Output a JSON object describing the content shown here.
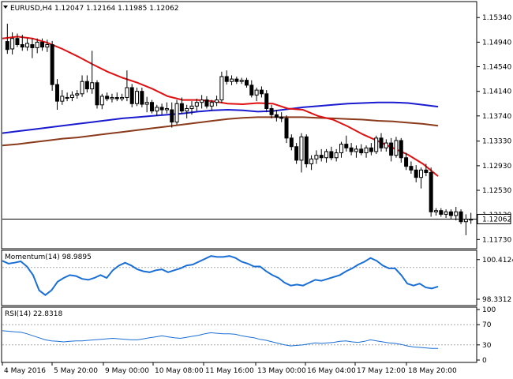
{
  "chart_data": [
    {
      "type": "candlestick",
      "title": "EURUSD,H4  1.12047 1.12164 1.11985 1.12062",
      "symbol": "EURUSD",
      "timeframe": "H4",
      "ohlc_label": "1.12047 1.12164 1.11985 1.12062",
      "ylim": [
        1.1158,
        1.156
      ],
      "y_ticks": [
        "1.15340",
        "1.14940",
        "1.14540",
        "1.14140",
        "1.13740",
        "1.13330",
        "1.12930",
        "1.12530",
        "1.12130",
        "1.11730"
      ],
      "current_price": 1.12062,
      "current_price_label": "1.12062",
      "colors": {
        "candle": "#000000",
        "bull_body": "#ffffff",
        "bear_body": "#000000",
        "ma_short": "#e01010",
        "ma_mid": "#1a1ad0",
        "ma_long": "#8b3a1c"
      },
      "candles": [
        {
          "o": 1.1495,
          "h": 1.1524,
          "l": 1.1475,
          "c": 1.1482
        },
        {
          "o": 1.1483,
          "h": 1.151,
          "l": 1.1474,
          "c": 1.15
        },
        {
          "o": 1.15,
          "h": 1.1508,
          "l": 1.1486,
          "c": 1.149
        },
        {
          "o": 1.149,
          "h": 1.1506,
          "l": 1.148,
          "c": 1.1486
        },
        {
          "o": 1.1486,
          "h": 1.15,
          "l": 1.148,
          "c": 1.1492
        },
        {
          "o": 1.149,
          "h": 1.15,
          "l": 1.1468,
          "c": 1.1485
        },
        {
          "o": 1.1485,
          "h": 1.15,
          "l": 1.1476,
          "c": 1.1494
        },
        {
          "o": 1.1494,
          "h": 1.15,
          "l": 1.148,
          "c": 1.1486
        },
        {
          "o": 1.1486,
          "h": 1.1498,
          "l": 1.1478,
          "c": 1.149
        },
        {
          "o": 1.149,
          "h": 1.1496,
          "l": 1.1415,
          "c": 1.1425
        },
        {
          "o": 1.1425,
          "h": 1.1434,
          "l": 1.1384,
          "c": 1.1398
        },
        {
          "o": 1.1398,
          "h": 1.1416,
          "l": 1.1392,
          "c": 1.1406
        },
        {
          "o": 1.1404,
          "h": 1.1412,
          "l": 1.1398,
          "c": 1.1404
        },
        {
          "o": 1.1404,
          "h": 1.1414,
          "l": 1.1398,
          "c": 1.1408
        },
        {
          "o": 1.1408,
          "h": 1.1416,
          "l": 1.1402,
          "c": 1.141
        },
        {
          "o": 1.141,
          "h": 1.144,
          "l": 1.1405,
          "c": 1.143
        },
        {
          "o": 1.143,
          "h": 1.144,
          "l": 1.1412,
          "c": 1.1418
        },
        {
          "o": 1.1418,
          "h": 1.148,
          "l": 1.141,
          "c": 1.1428
        },
        {
          "o": 1.1428,
          "h": 1.1432,
          "l": 1.1386,
          "c": 1.1392
        },
        {
          "o": 1.1392,
          "h": 1.141,
          "l": 1.1385,
          "c": 1.1406
        },
        {
          "o": 1.1406,
          "h": 1.1412,
          "l": 1.1398,
          "c": 1.1402
        },
        {
          "o": 1.1402,
          "h": 1.141,
          "l": 1.1396,
          "c": 1.1404
        },
        {
          "o": 1.1404,
          "h": 1.1412,
          "l": 1.1398,
          "c": 1.1402
        },
        {
          "o": 1.1402,
          "h": 1.141,
          "l": 1.1398,
          "c": 1.1404
        },
        {
          "o": 1.1404,
          "h": 1.1448,
          "l": 1.1398,
          "c": 1.142
        },
        {
          "o": 1.142,
          "h": 1.1426,
          "l": 1.1388,
          "c": 1.1394
        },
        {
          "o": 1.1394,
          "h": 1.142,
          "l": 1.139,
          "c": 1.1414
        },
        {
          "o": 1.1414,
          "h": 1.142,
          "l": 1.1388,
          "c": 1.1393
        },
        {
          "o": 1.1393,
          "h": 1.1405,
          "l": 1.138,
          "c": 1.1396
        },
        {
          "o": 1.1396,
          "h": 1.14,
          "l": 1.1378,
          "c": 1.1382
        },
        {
          "o": 1.1382,
          "h": 1.1392,
          "l": 1.1374,
          "c": 1.1388
        },
        {
          "o": 1.1388,
          "h": 1.1394,
          "l": 1.1376,
          "c": 1.1384
        },
        {
          "o": 1.1384,
          "h": 1.1396,
          "l": 1.1378,
          "c": 1.1386
        },
        {
          "o": 1.1384,
          "h": 1.1396,
          "l": 1.1355,
          "c": 1.1364
        },
        {
          "o": 1.1364,
          "h": 1.14,
          "l": 1.136,
          "c": 1.1394
        },
        {
          "o": 1.1394,
          "h": 1.1404,
          "l": 1.1378,
          "c": 1.1382
        },
        {
          "o": 1.1382,
          "h": 1.1392,
          "l": 1.137,
          "c": 1.1386
        },
        {
          "o": 1.1386,
          "h": 1.1398,
          "l": 1.1376,
          "c": 1.139
        },
        {
          "o": 1.139,
          "h": 1.1402,
          "l": 1.1382,
          "c": 1.1396
        },
        {
          "o": 1.1396,
          "h": 1.1408,
          "l": 1.1386,
          "c": 1.14
        },
        {
          "o": 1.14,
          "h": 1.1406,
          "l": 1.1386,
          "c": 1.139
        },
        {
          "o": 1.139,
          "h": 1.14,
          "l": 1.1383,
          "c": 1.1396
        },
        {
          "o": 1.1396,
          "h": 1.1407,
          "l": 1.139,
          "c": 1.14
        },
        {
          "o": 1.14,
          "h": 1.1446,
          "l": 1.1395,
          "c": 1.1438
        },
        {
          "o": 1.1438,
          "h": 1.1448,
          "l": 1.1425,
          "c": 1.143
        },
        {
          "o": 1.143,
          "h": 1.144,
          "l": 1.1424,
          "c": 1.1434
        },
        {
          "o": 1.1434,
          "h": 1.1438,
          "l": 1.1426,
          "c": 1.143
        },
        {
          "o": 1.143,
          "h": 1.1436,
          "l": 1.1426,
          "c": 1.1432
        },
        {
          "o": 1.1432,
          "h": 1.1436,
          "l": 1.142,
          "c": 1.1424
        },
        {
          "o": 1.1424,
          "h": 1.1432,
          "l": 1.1404,
          "c": 1.1408
        },
        {
          "o": 1.1408,
          "h": 1.142,
          "l": 1.1398,
          "c": 1.1416
        },
        {
          "o": 1.1416,
          "h": 1.1422,
          "l": 1.1404,
          "c": 1.141
        },
        {
          "o": 1.141,
          "h": 1.1416,
          "l": 1.138,
          "c": 1.1386
        },
        {
          "o": 1.1386,
          "h": 1.1392,
          "l": 1.137,
          "c": 1.1376
        },
        {
          "o": 1.1376,
          "h": 1.1384,
          "l": 1.1365,
          "c": 1.1372
        },
        {
          "o": 1.1372,
          "h": 1.138,
          "l": 1.1364,
          "c": 1.137
        },
        {
          "o": 1.137,
          "h": 1.1375,
          "l": 1.133,
          "c": 1.1338
        },
        {
          "o": 1.1338,
          "h": 1.1344,
          "l": 1.1318,
          "c": 1.1324
        },
        {
          "o": 1.1324,
          "h": 1.133,
          "l": 1.1296,
          "c": 1.1302
        },
        {
          "o": 1.1302,
          "h": 1.1346,
          "l": 1.1282,
          "c": 1.134
        },
        {
          "o": 1.134,
          "h": 1.1344,
          "l": 1.129,
          "c": 1.1296
        },
        {
          "o": 1.1296,
          "h": 1.131,
          "l": 1.1286,
          "c": 1.1304
        },
        {
          "o": 1.1304,
          "h": 1.1318,
          "l": 1.1296,
          "c": 1.131
        },
        {
          "o": 1.131,
          "h": 1.132,
          "l": 1.13,
          "c": 1.1306
        },
        {
          "o": 1.1306,
          "h": 1.132,
          "l": 1.1298,
          "c": 1.1316
        },
        {
          "o": 1.1316,
          "h": 1.1324,
          "l": 1.1302,
          "c": 1.1306
        },
        {
          "o": 1.1306,
          "h": 1.132,
          "l": 1.13,
          "c": 1.1314
        },
        {
          "o": 1.1314,
          "h": 1.1332,
          "l": 1.1306,
          "c": 1.1328
        },
        {
          "o": 1.1328,
          "h": 1.1342,
          "l": 1.1316,
          "c": 1.1322
        },
        {
          "o": 1.1322,
          "h": 1.133,
          "l": 1.131,
          "c": 1.1316
        },
        {
          "o": 1.1316,
          "h": 1.1326,
          "l": 1.1306,
          "c": 1.132
        },
        {
          "o": 1.132,
          "h": 1.1328,
          "l": 1.131,
          "c": 1.1314
        },
        {
          "o": 1.1314,
          "h": 1.1326,
          "l": 1.1306,
          "c": 1.1322
        },
        {
          "o": 1.1322,
          "h": 1.133,
          "l": 1.131,
          "c": 1.1316
        },
        {
          "o": 1.1316,
          "h": 1.1342,
          "l": 1.1312,
          "c": 1.1338
        },
        {
          "o": 1.1338,
          "h": 1.1346,
          "l": 1.1316,
          "c": 1.1322
        },
        {
          "o": 1.1322,
          "h": 1.1336,
          "l": 1.1316,
          "c": 1.133
        },
        {
          "o": 1.133,
          "h": 1.1338,
          "l": 1.13,
          "c": 1.131
        },
        {
          "o": 1.131,
          "h": 1.134,
          "l": 1.1306,
          "c": 1.1334
        },
        {
          "o": 1.1334,
          "h": 1.1338,
          "l": 1.1298,
          "c": 1.1306
        },
        {
          "o": 1.1306,
          "h": 1.1314,
          "l": 1.1286,
          "c": 1.1292
        },
        {
          "o": 1.1292,
          "h": 1.13,
          "l": 1.128,
          "c": 1.1286
        },
        {
          "o": 1.1286,
          "h": 1.1294,
          "l": 1.1266,
          "c": 1.1274
        },
        {
          "o": 1.1274,
          "h": 1.129,
          "l": 1.1256,
          "c": 1.1286
        },
        {
          "o": 1.1286,
          "h": 1.1296,
          "l": 1.1276,
          "c": 1.1282
        },
        {
          "o": 1.1282,
          "h": 1.129,
          "l": 1.121,
          "c": 1.1218
        },
        {
          "o": 1.1218,
          "h": 1.1224,
          "l": 1.1212,
          "c": 1.122
        },
        {
          "o": 1.122,
          "h": 1.1224,
          "l": 1.121,
          "c": 1.1214
        },
        {
          "o": 1.1214,
          "h": 1.1222,
          "l": 1.1208,
          "c": 1.1218
        },
        {
          "o": 1.1218,
          "h": 1.1222,
          "l": 1.1206,
          "c": 1.1212
        },
        {
          "o": 1.1212,
          "h": 1.1226,
          "l": 1.1204,
          "c": 1.1218
        },
        {
          "o": 1.1218,
          "h": 1.1222,
          "l": 1.1198,
          "c": 1.1202
        },
        {
          "o": 1.1202,
          "h": 1.1214,
          "l": 1.118,
          "c": 1.1206
        },
        {
          "o": 1.12047,
          "h": 1.12164,
          "l": 1.11985,
          "c": 1.12062
        }
      ],
      "ma_short_y": [
        1.15,
        1.1503,
        1.15,
        1.1493,
        1.1483,
        1.1471,
        1.1458,
        1.1446,
        1.1436,
        1.1428,
        1.1418,
        1.1406,
        1.14,
        1.14,
        1.1398,
        1.1394,
        1.1393,
        1.1395,
        1.1394,
        1.1386,
        1.1384,
        1.1374,
        1.1368,
        1.1357,
        1.1344,
        1.1333,
        1.1322,
        1.1311,
        1.1296,
        1.1276
      ],
      "ma_mid_y": [
        1.1346,
        1.1349,
        1.1352,
        1.1355,
        1.1358,
        1.1361,
        1.1364,
        1.1367,
        1.137,
        1.1372,
        1.1374,
        1.1376,
        1.1378,
        1.1381,
        1.1383,
        1.1384,
        1.1383,
        1.1381,
        1.1382,
        1.1385,
        1.1388,
        1.139,
        1.1392,
        1.1394,
        1.1395,
        1.1396,
        1.1396,
        1.1395,
        1.1392,
        1.1389
      ],
      "ma_long_y": [
        1.1326,
        1.1328,
        1.1331,
        1.1334,
        1.1337,
        1.1339,
        1.1342,
        1.1345,
        1.1348,
        1.1351,
        1.1354,
        1.1357,
        1.136,
        1.1363,
        1.1366,
        1.1369,
        1.1371,
        1.1372,
        1.1372,
        1.1372,
        1.1372,
        1.1371,
        1.137,
        1.1369,
        1.1368,
        1.1366,
        1.1365,
        1.1363,
        1.1361,
        1.1358
      ]
    },
    {
      "type": "line",
      "title": "Momentum(14) 98.9895",
      "name": "Momentum(14)",
      "value_label": "98.9895",
      "ylim": [
        98.0,
        100.9
      ],
      "y_ticks": [
        "100.4124",
        "98.3312"
      ],
      "ref_line": 100.0,
      "color": "#1a6fd6",
      "values": [
        100.35,
        100.2,
        100.25,
        100.32,
        100.05,
        99.6,
        98.8,
        98.55,
        98.8,
        99.25,
        99.45,
        99.6,
        99.55,
        99.4,
        99.35,
        99.45,
        99.6,
        99.45,
        99.85,
        100.1,
        100.25,
        100.1,
        99.9,
        99.8,
        99.75,
        99.85,
        99.9,
        99.75,
        99.85,
        99.95,
        100.1,
        100.15,
        100.3,
        100.45,
        100.6,
        100.55,
        100.55,
        100.6,
        100.5,
        100.3,
        100.2,
        100.05,
        100.05,
        99.8,
        99.6,
        99.45,
        99.2,
        99.05,
        99.1,
        99.05,
        99.2,
        99.35,
        99.3,
        99.4,
        99.5,
        99.6,
        99.8,
        99.95,
        100.15,
        100.3,
        100.5,
        100.35,
        100.1,
        99.95,
        99.95,
        99.6,
        99.15,
        99.05,
        99.15,
        98.95,
        98.9,
        99.0
      ]
    },
    {
      "type": "line",
      "title": "RSI(14) 22.8318",
      "name": "RSI(14)",
      "value_label": "22.8318",
      "ylim": [
        0,
        100
      ],
      "y_ticks": [
        "100",
        "70",
        "30",
        "0"
      ],
      "ref_lines": [
        70,
        30
      ],
      "color": "#1a6fd6",
      "values": [
        58,
        57,
        56,
        55,
        52,
        48,
        44,
        40,
        38,
        37,
        36,
        37,
        38,
        38,
        39,
        40,
        41,
        42,
        43,
        42,
        41,
        40,
        40,
        42,
        44,
        46,
        48,
        46,
        44,
        43,
        45,
        47,
        49,
        52,
        54,
        53,
        52,
        52,
        51,
        48,
        46,
        44,
        41,
        39,
        36,
        33,
        30,
        28,
        29,
        30,
        32,
        34,
        33,
        34,
        35,
        37,
        38,
        36,
        35,
        37,
        40,
        38,
        36,
        34,
        33,
        31,
        28,
        26,
        25,
        24,
        23,
        23
      ]
    }
  ],
  "x_axis": {
    "labels": [
      "4 May 2016",
      "5 May 20:00",
      "9 May 00:00",
      "10 May 08:00",
      "11 May 16:00",
      "13 May 00:00",
      "16 May 04:00",
      "17 May 12:00",
      "18 May 20:00"
    ]
  }
}
